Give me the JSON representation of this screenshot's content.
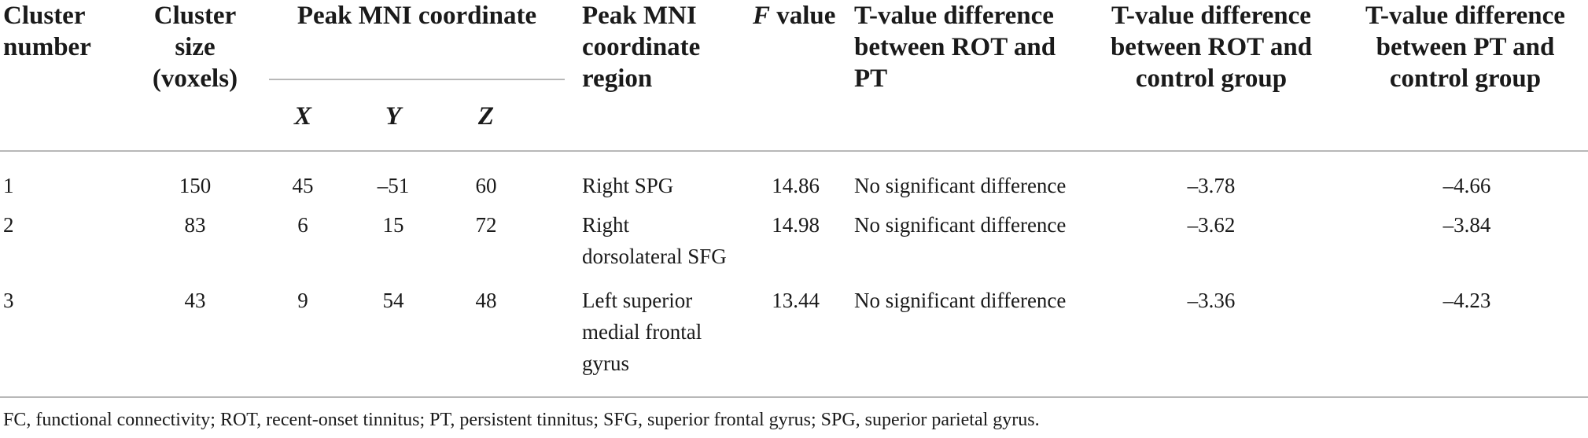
{
  "table": {
    "headers": {
      "cluster_number": [
        "Cluster",
        "number"
      ],
      "cluster_size": [
        "Cluster",
        "size",
        "(voxels)"
      ],
      "peak_mni": "Peak MNI coordinate",
      "x": "X",
      "y": "Y",
      "z": "Z",
      "region": [
        "Peak MNI",
        "coordinate",
        "region"
      ],
      "f_value_letter": "F",
      "f_value_word": " value",
      "t_rot_pt": [
        "T-value difference",
        "between ROT and",
        "PT"
      ],
      "t_rot_ctrl": [
        "T-value difference",
        "between ROT and",
        "control group"
      ],
      "t_pt_ctrl": [
        "T-value difference",
        "between PT and",
        "control group"
      ]
    },
    "rows": [
      {
        "cluster": "1",
        "size": "150",
        "x": "45",
        "y": "–51",
        "z": "60",
        "region": [
          "Right SPG"
        ],
        "f": "14.86",
        "t_rot_pt": "No significant difference",
        "t_rot_ctrl": "–3.78",
        "t_pt_ctrl": "–4.66"
      },
      {
        "cluster": "2",
        "size": "83",
        "x": "6",
        "y": "15",
        "z": "72",
        "region": [
          "Right",
          "dorsolateral SFG"
        ],
        "f": "14.98",
        "t_rot_pt": "No significant difference",
        "t_rot_ctrl": "–3.62",
        "t_pt_ctrl": "–3.84"
      },
      {
        "cluster": "3",
        "size": "43",
        "x": "9",
        "y": "54",
        "z": "48",
        "region": [
          "Left superior",
          "medial frontal",
          "gyrus"
        ],
        "f": "13.44",
        "t_rot_pt": "No significant difference",
        "t_rot_ctrl": "–3.36",
        "t_pt_ctrl": "–4.23"
      }
    ],
    "footnote": "FC, functional connectivity; ROT, recent-onset tinnitus; PT, persistent tinnitus; SFG, superior frontal gyrus; SPG, superior parietal gyrus."
  }
}
